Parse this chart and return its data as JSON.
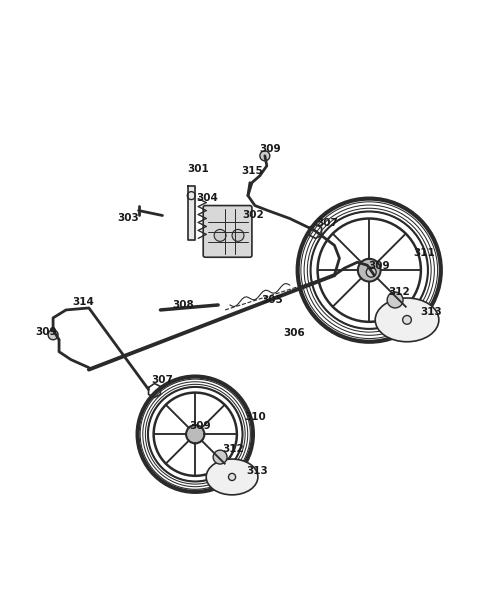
{
  "bg_color": "#ffffff",
  "fig_width": 4.78,
  "fig_height": 6.0,
  "dpi": 100,
  "line_color": "#2a2a2a",
  "text_color": "#1a1a1a",
  "label_fontsize": 7.5
}
